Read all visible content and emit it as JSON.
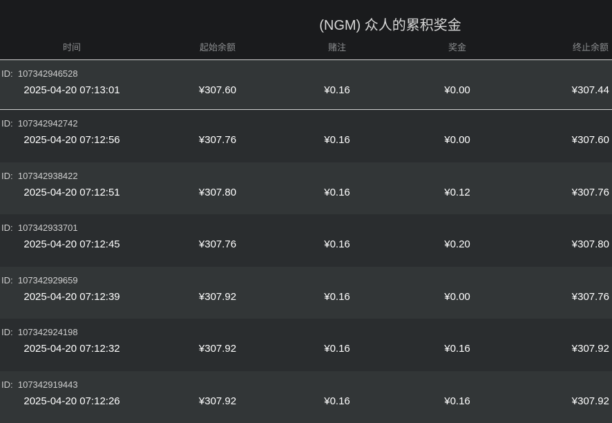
{
  "title": "(NGM) 众人的累积奖金",
  "columns": [
    "时间",
    "起始余额",
    "赌注",
    "奖金",
    "终止余额"
  ],
  "id_prefix": "ID:",
  "rows": [
    {
      "id": "107342946528",
      "time": "2025-04-20 07:13:01",
      "start": "¥307.60",
      "bet": "¥0.16",
      "prize": "¥0.00",
      "end": "¥307.44"
    },
    {
      "id": "107342942742",
      "time": "2025-04-20 07:12:56",
      "start": "¥307.76",
      "bet": "¥0.16",
      "prize": "¥0.00",
      "end": "¥307.60"
    },
    {
      "id": "107342938422",
      "time": "2025-04-20 07:12:51",
      "start": "¥307.80",
      "bet": "¥0.16",
      "prize": "¥0.12",
      "end": "¥307.76"
    },
    {
      "id": "107342933701",
      "time": "2025-04-20 07:12:45",
      "start": "¥307.76",
      "bet": "¥0.16",
      "prize": "¥0.20",
      "end": "¥307.80"
    },
    {
      "id": "107342929659",
      "time": "2025-04-20 07:12:39",
      "start": "¥307.92",
      "bet": "¥0.16",
      "prize": "¥0.00",
      "end": "¥307.76"
    },
    {
      "id": "107342924198",
      "time": "2025-04-20 07:12:32",
      "start": "¥307.92",
      "bet": "¥0.16",
      "prize": "¥0.16",
      "end": "¥307.92"
    },
    {
      "id": "107342919443",
      "time": "2025-04-20 07:12:26",
      "start": "¥307.92",
      "bet": "¥0.16",
      "prize": "¥0.16",
      "end": "¥307.92"
    }
  ]
}
